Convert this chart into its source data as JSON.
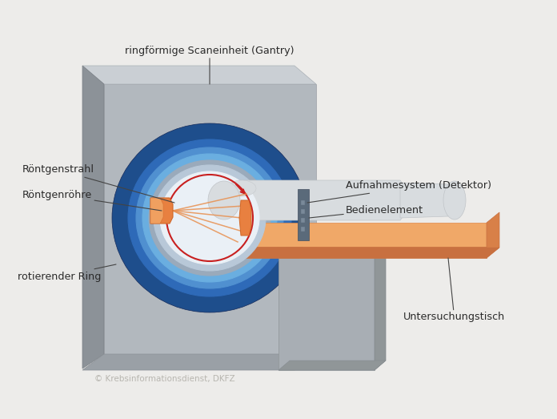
{
  "bg_color": "#edecea",
  "copyright_text": "© Krebsinformationsdienst, DKFZ",
  "copyright_color": "#b8b6b0",
  "copyright_fontsize": 7.5,
  "labels": {
    "gantry": "ringförmige Scaneinheit (Gantry)",
    "xray_beam": "Röntgenstrahl",
    "xray_tube": "Röntgenröhre",
    "rotating_ring": "rotierender Ring",
    "detector": "Aufnahmesystem (Detektor)",
    "control": "Bedienelement",
    "table": "Untersuchungstisch"
  },
  "colors": {
    "gantry_front": "#b2b8be",
    "gantry_top": "#cacfd4",
    "gantry_left": "#8c9298",
    "gantry_bottom": "#9aa0a6",
    "blue_dark": "#1e4e8c",
    "blue_mid": "#2e6ab8",
    "blue_light": "#5090d0",
    "blue_ring_inner": "#6aaee0",
    "blue_ring_gray": "#8090a0",
    "hole_light": "#d8e2ec",
    "hole_white": "#eaf0f6",
    "red_circle": "#c82020",
    "orange_dark": "#d06828",
    "orange_mid": "#e88040",
    "orange_light": "#f0a060",
    "orange_beam": "#e89050",
    "table_top": "#f0a868",
    "table_front": "#e08848",
    "table_bottom_face": "#c87040",
    "table_right_face": "#d88048",
    "support_top": "#c0c6cc",
    "support_front": "#a8aeb4",
    "support_left": "#909698",
    "person_light": "#d8dcdf",
    "person_mid": "#c0c4c8",
    "label_color": "#2a2a2a",
    "line_color": "#444444"
  }
}
